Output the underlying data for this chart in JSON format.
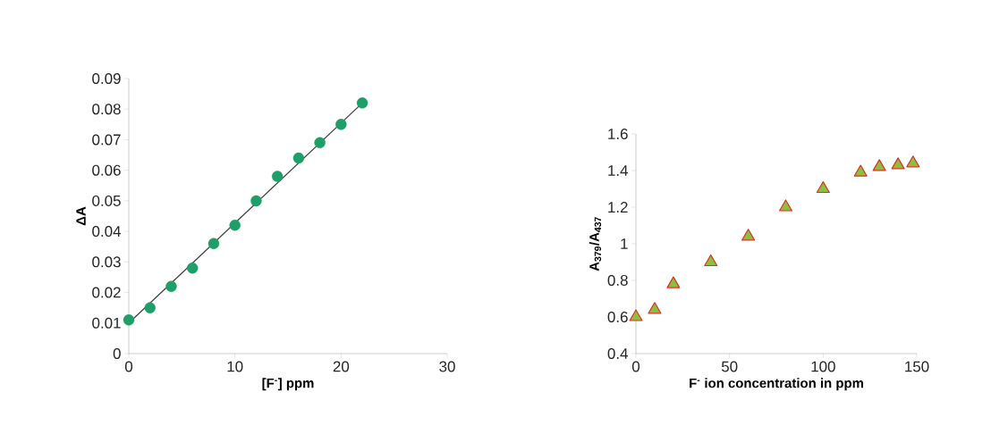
{
  "chart_data": [
    {
      "type": "scatter",
      "xlabel": "[F$^{-}$] ppm",
      "ylabel": "ΔA",
      "xlim": [
        0,
        30
      ],
      "ylim": [
        0,
        0.09
      ],
      "xticks": [
        0,
        10,
        20,
        30
      ],
      "yticks": [
        0,
        0.01,
        0.02,
        0.03,
        0.04,
        0.05,
        0.06,
        0.07,
        0.08,
        0.09
      ],
      "series": [
        {
          "x": [
            0,
            2,
            4,
            6,
            8,
            10,
            12,
            14,
            16,
            18,
            20,
            22
          ],
          "values": [
            0.011,
            0.015,
            0.022,
            0.028,
            0.036,
            0.042,
            0.05,
            0.058,
            0.064,
            0.069,
            0.075,
            0.082
          ],
          "color": "#1e9e68",
          "marker": "circle"
        },
        {
          "type": "line",
          "x": [
            0,
            22
          ],
          "values": [
            0.01,
            0.082
          ],
          "color": "#404040",
          "marker": "none",
          "line_style": "solid"
        }
      ]
    },
    {
      "type": "scatter",
      "xlabel": "F$^{-}$  ion concentration in ppm",
      "ylabel": "A$_{379}$/A$_{437}$",
      "xlim": [
        0,
        150
      ],
      "ylim": [
        0.4,
        1.6
      ],
      "xticks": [
        0,
        50,
        100,
        150
      ],
      "yticks": [
        0.4,
        0.6,
        0.8,
        1,
        1.2,
        1.4,
        1.6
      ],
      "series": [
        {
          "x": [
            0,
            10,
            20,
            40,
            60,
            80,
            100,
            120,
            130,
            140,
            148
          ],
          "values": [
            0.6,
            0.64,
            0.78,
            0.9,
            1.04,
            1.2,
            1.3,
            1.39,
            1.42,
            1.43,
            1.44
          ],
          "color": "#8cbf3f",
          "marker": "triangle"
        }
      ]
    }
  ]
}
